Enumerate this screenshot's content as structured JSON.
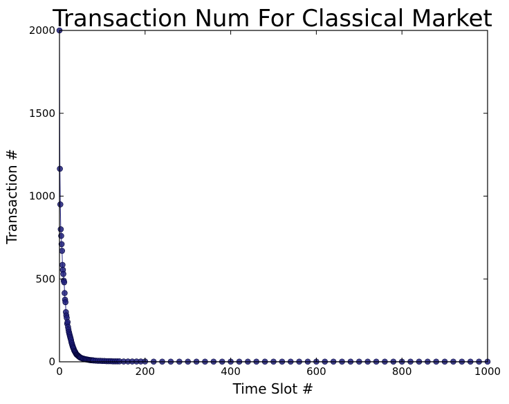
{
  "chart_data": {
    "type": "scatter",
    "title": "Transaction Num For Classical Market",
    "xlabel": "Time Slot #",
    "ylabel": "Transaction #",
    "xlim": [
      0,
      1000
    ],
    "ylim": [
      0,
      2000
    ],
    "xticks": [
      "0",
      "200",
      "400",
      "600",
      "800",
      "1000"
    ],
    "yticks": [
      "0",
      "500",
      "1000",
      "1500",
      "2000"
    ],
    "grid": false,
    "connected_line": true,
    "marker_color": "#1f1f7a",
    "line_color": "#2a2a8a",
    "points": {
      "x": [
        0,
        1,
        2,
        3,
        4,
        5,
        6,
        7,
        8,
        9,
        10,
        11,
        12,
        13,
        14,
        15,
        16,
        17,
        18,
        19,
        20,
        21,
        22,
        23,
        24,
        25,
        26,
        27,
        28,
        29,
        30,
        31,
        32,
        33,
        34,
        35,
        36,
        37,
        38,
        39,
        40,
        41,
        42,
        43,
        44,
        45,
        46,
        47,
        48,
        49,
        50,
        52,
        54,
        56,
        58,
        60,
        62,
        64,
        66,
        68,
        70,
        72,
        74,
        76,
        78,
        80,
        85,
        90,
        95,
        100,
        105,
        110,
        115,
        120,
        125,
        130,
        135,
        140,
        150,
        160,
        170,
        180,
        190,
        200,
        220,
        240,
        260,
        280,
        300,
        320,
        340,
        360,
        380,
        400,
        420,
        440,
        460,
        480,
        500,
        520,
        540,
        560,
        580,
        600,
        620,
        640,
        660,
        680,
        700,
        720,
        740,
        760,
        780,
        800,
        820,
        840,
        860,
        880,
        900,
        920,
        940,
        960,
        980,
        1000
      ],
      "y": [
        2000,
        1165,
        950,
        800,
        760,
        710,
        670,
        585,
        555,
        530,
        490,
        480,
        415,
        375,
        360,
        300,
        280,
        265,
        230,
        240,
        210,
        195,
        180,
        170,
        160,
        150,
        140,
        130,
        118,
        110,
        100,
        92,
        85,
        80,
        72,
        66,
        62,
        58,
        52,
        48,
        44,
        42,
        40,
        38,
        35,
        33,
        31,
        29,
        27,
        25,
        24,
        22,
        20,
        19,
        17,
        16,
        15,
        14,
        13,
        12,
        11,
        10,
        10,
        9,
        9,
        8,
        7,
        6,
        6,
        5,
        5,
        4,
        4,
        4,
        3,
        3,
        3,
        3,
        2,
        2,
        2,
        2,
        2,
        2,
        1,
        1,
        1,
        1,
        1,
        1,
        1,
        1,
        1,
        1,
        1,
        1,
        1,
        1,
        1,
        1,
        1,
        1,
        1,
        1,
        1,
        1,
        1,
        1,
        1,
        1,
        1,
        1,
        1,
        1,
        1,
        1,
        1,
        1,
        1,
        1,
        1,
        1,
        1,
        1
      ]
    }
  }
}
